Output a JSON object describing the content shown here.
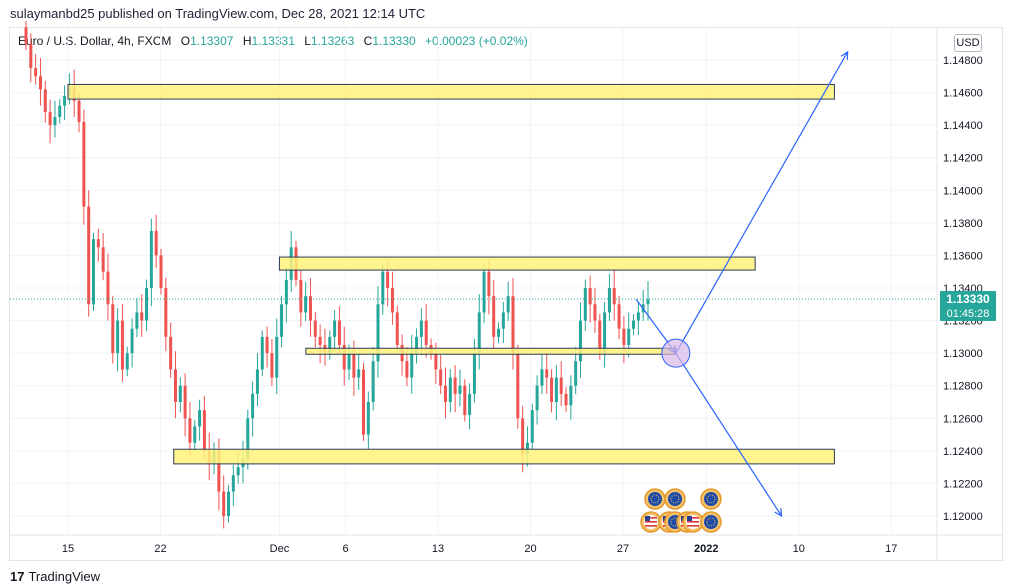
{
  "header": {
    "published": "sulaymanbd25 published on TradingView.com, Dec 28, 2021 12:14 UTC"
  },
  "legend": {
    "symbol": "Euro / U.S. Dollar, 4h, FXCM",
    "open_label": "O",
    "open": "1.13307",
    "high_label": "H",
    "high": "1.13331",
    "low_label": "L",
    "low": "1.13263",
    "close_label": "C",
    "close": "1.13330",
    "change": "+0.00023 (+0.02%)"
  },
  "currency_button": "USD",
  "price_label": {
    "price": "1.13330",
    "countdown": "01:45:28"
  },
  "footer": {
    "logo_glyph": "17",
    "brand": "TradingView"
  },
  "colors": {
    "up": "#26a69a",
    "down": "#ef5350",
    "zone_fill": "#fff27a",
    "zone_border": "#2962ff",
    "line": "#2962ff",
    "accent": "#26a69a"
  },
  "chart_data": {
    "type": "candlestick",
    "symbol": "EURUSD",
    "timeframe": "4h",
    "ylim": [
      1.119,
      1.1495
    ],
    "y_ticks": [
      "1.14800",
      "1.14600",
      "1.14400",
      "1.14200",
      "1.14000",
      "1.13800",
      "1.13600",
      "1.13400",
      "1.13200",
      "1.13000",
      "1.12800",
      "1.12600",
      "1.12400",
      "1.12200",
      "1.12000"
    ],
    "x_ticks": [
      "15",
      "22",
      "Dec",
      "6",
      "13",
      "20",
      "27",
      "2022",
      "10",
      "17"
    ],
    "bold_x_tick": "2022",
    "last_price": 1.1333,
    "series_closes": [
      1.149,
      1.1475,
      1.147,
      1.1462,
      1.1448,
      1.144,
      1.1445,
      1.1452,
      1.1458,
      1.1463,
      1.1455,
      1.1442,
      1.139,
      1.133,
      1.137,
      1.1365,
      1.135,
      1.133,
      1.13,
      1.132,
      1.129,
      1.13,
      1.1315,
      1.1325,
      1.132,
      1.134,
      1.1375,
      1.136,
      1.134,
      1.131,
      1.129,
      1.127,
      1.128,
      1.126,
      1.1245,
      1.1255,
      1.1265,
      1.124,
      1.1232,
      1.124,
      1.1215,
      1.12,
      1.1215,
      1.1225,
      1.123,
      1.1235,
      1.126,
      1.1275,
      1.129,
      1.131,
      1.13,
      1.1285,
      1.131,
      1.133,
      1.1345,
      1.1365,
      1.1345,
      1.1325,
      1.1335,
      1.132,
      1.131,
      1.1305,
      1.13,
      1.131,
      1.132,
      1.1305,
      1.129,
      1.13,
      1.1285,
      1.129,
      1.125,
      1.127,
      1.1295,
      1.133,
      1.135,
      1.134,
      1.1325,
      1.1305,
      1.1295,
      1.1285,
      1.13,
      1.131,
      1.132,
      1.1305,
      1.13,
      1.129,
      1.128,
      1.127,
      1.1285,
      1.1275,
      1.128,
      1.1262,
      1.1275,
      1.13,
      1.1325,
      1.135,
      1.1335,
      1.131,
      1.1315,
      1.1325,
      1.1335,
      1.13,
      1.126,
      1.1238,
      1.1245,
      1.1265,
      1.128,
      1.129,
      1.1285,
      1.127,
      1.1285,
      1.1275,
      1.1268,
      1.128,
      1.1295,
      1.132,
      1.134,
      1.133,
      1.132,
      1.13,
      1.1325,
      1.134,
      1.133,
      1.1315,
      1.1305,
      1.1315,
      1.132,
      1.1325,
      1.133,
      1.1333
    ],
    "zones": [
      {
        "x_from": "Nov 15",
        "x_to": "Jan 12",
        "y_low": 1.1456,
        "y_high": 1.1465
      },
      {
        "x_from": "Dec 1",
        "x_to": "Jan 6",
        "y_low": 1.1351,
        "y_high": 1.1359
      },
      {
        "x_from": "Dec 3",
        "x_to": "Dec 31",
        "y_low": 1.13,
        "y_high": 1.1303
      },
      {
        "x_from": "Nov 23",
        "x_to": "Jan 12",
        "y_low": 1.1232,
        "y_high": 1.1241
      }
    ],
    "projection_lines": [
      {
        "from": [
          "Dec 28",
          1.1333
        ],
        "to": [
          "Dec 31",
          1.13
        ]
      },
      {
        "from": [
          "Dec 31",
          1.13
        ],
        "to": [
          "Jan 13",
          1.1485
        ]
      },
      {
        "from": [
          "Dec 31",
          1.13
        ],
        "to": [
          "Jan 8",
          1.12
        ]
      }
    ],
    "marked_point": [
      "Dec 31",
      1.13
    ],
    "event_icons": [
      "eu-flag",
      "eu-flag",
      "eu-flag",
      "us-flag",
      "us-flag",
      "eu-flag",
      "us-flag",
      "us-flag",
      "eu-flag"
    ]
  }
}
